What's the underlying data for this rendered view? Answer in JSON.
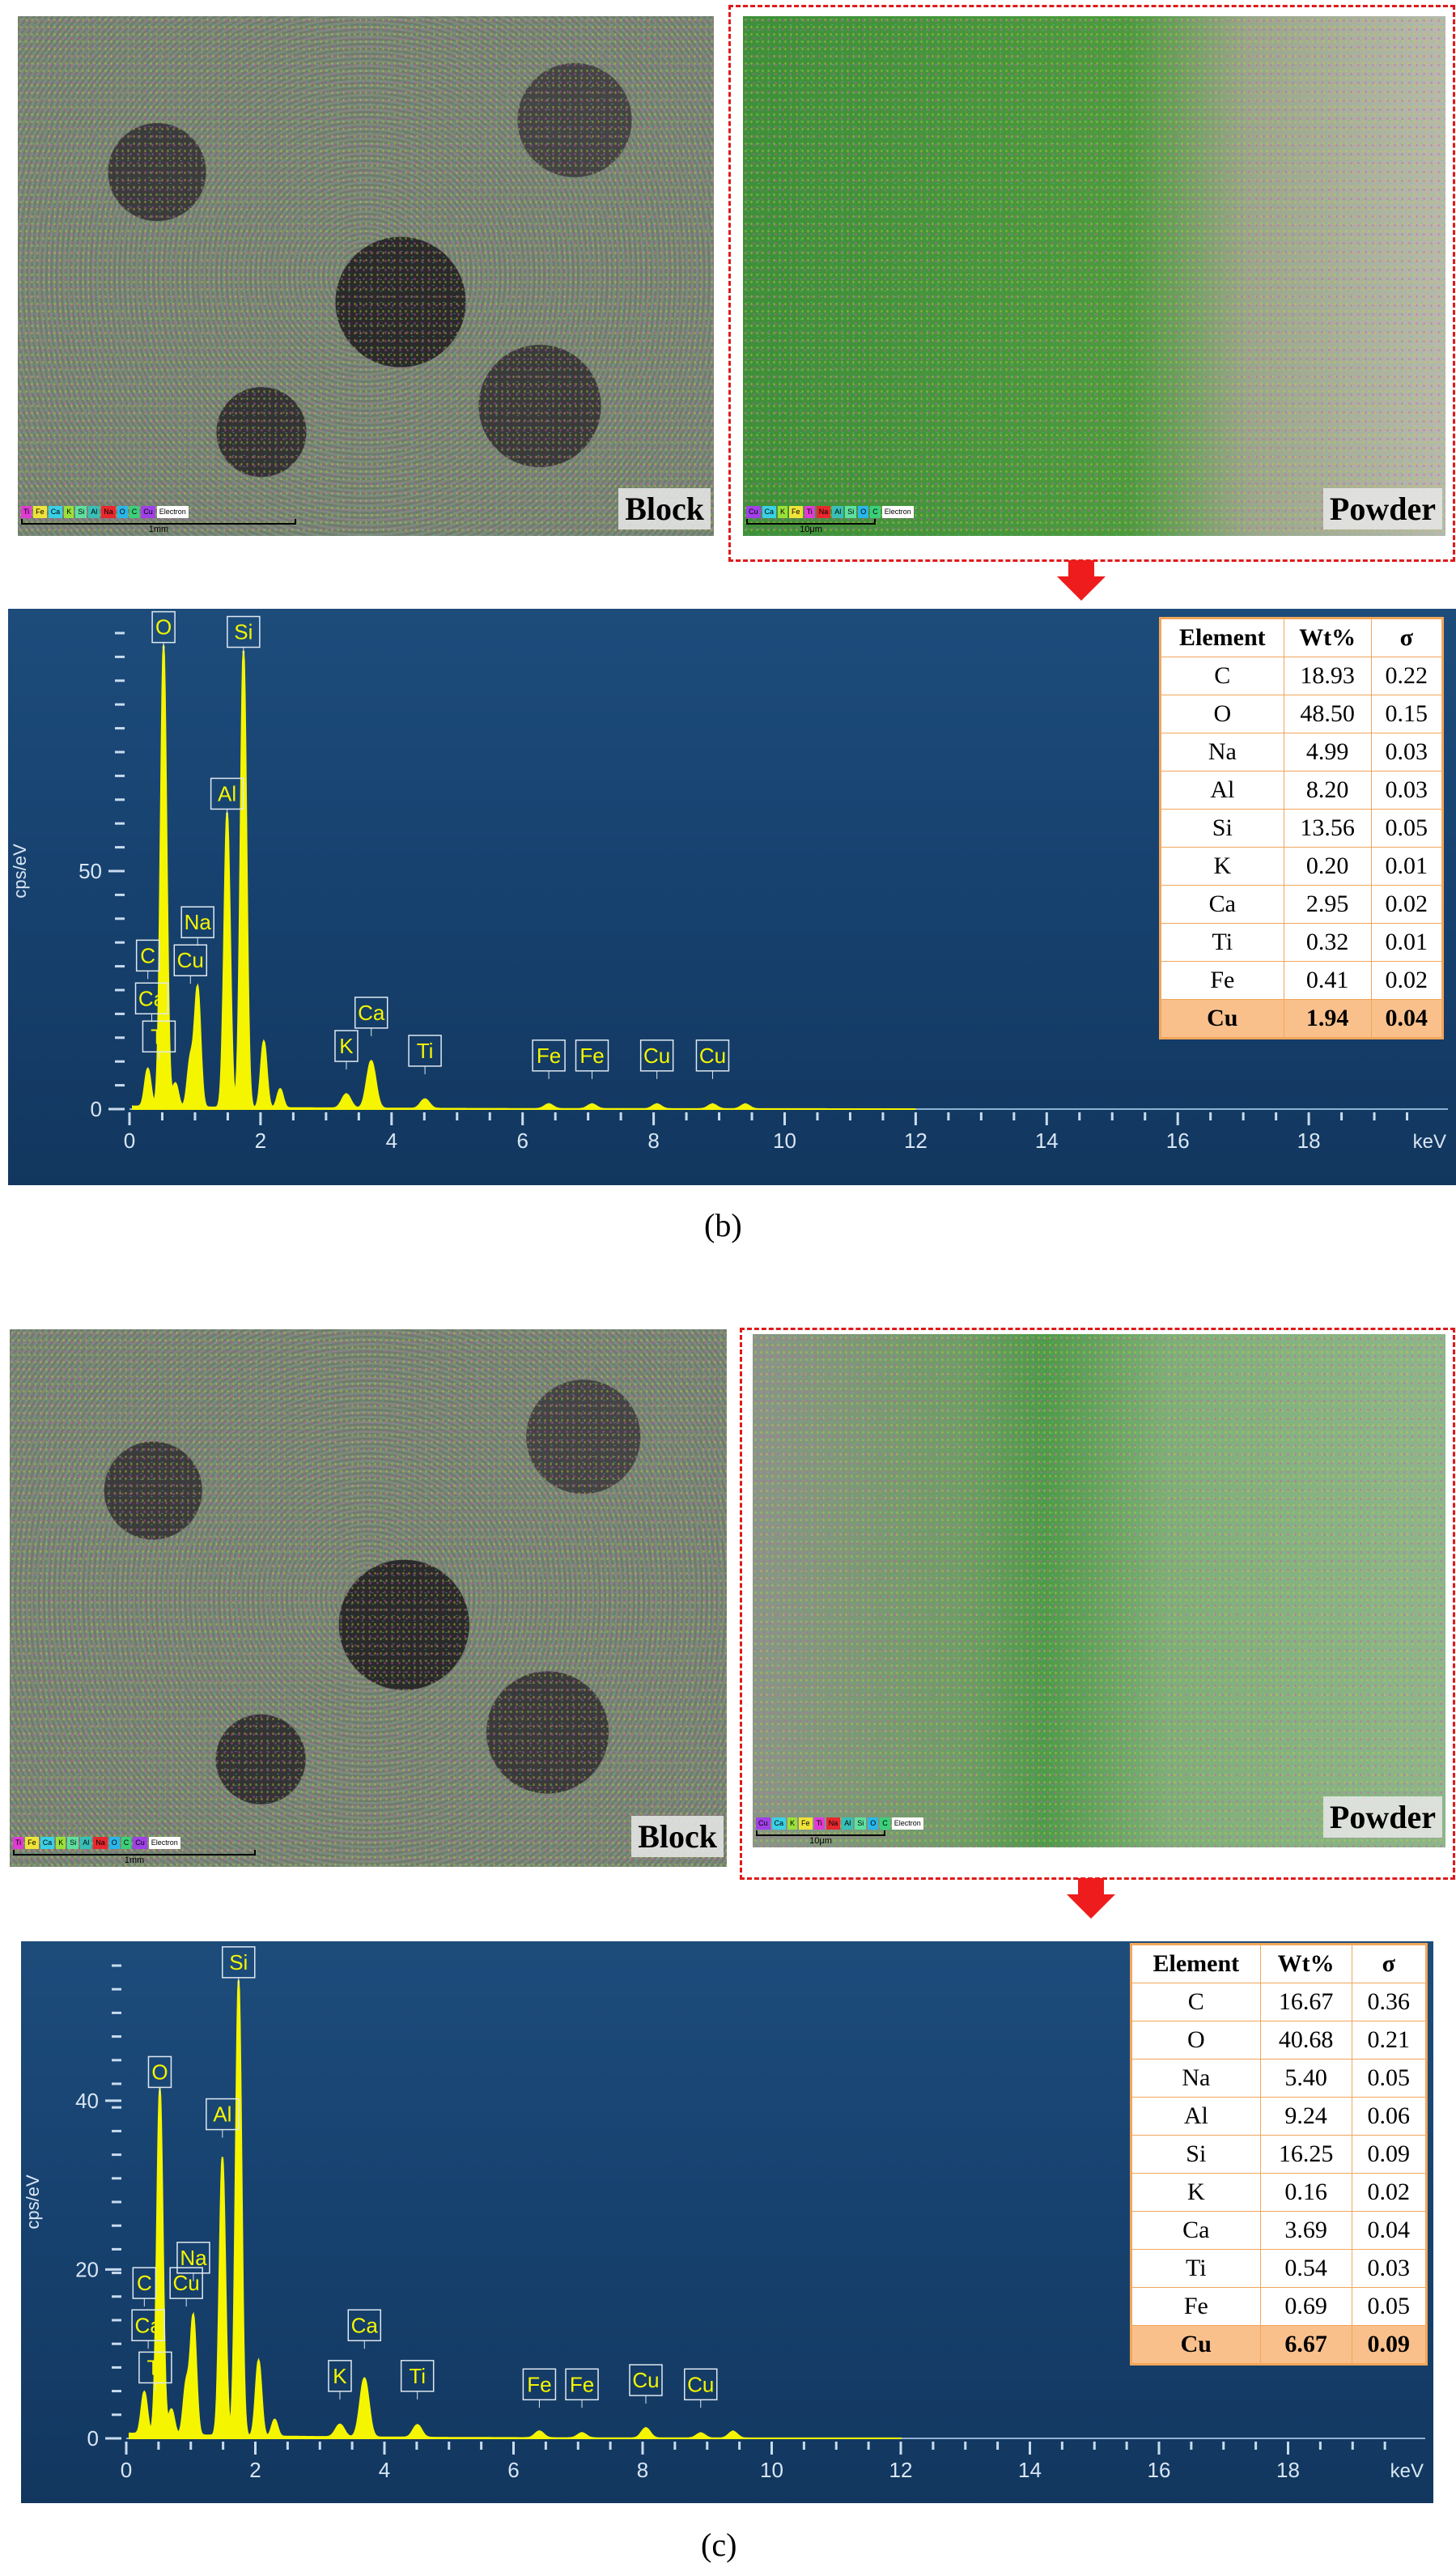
{
  "panels": [
    {
      "id": "b",
      "caption": "(b)",
      "block_label": "Block",
      "powder_label": "Powder",
      "block_legend": [
        "Ti",
        "Fe",
        "Ca",
        "K",
        "Si",
        "Al",
        "Na",
        "O",
        "C",
        "Cu",
        "Electron"
      ],
      "powder_legend": [
        "Cu",
        "Ca",
        "K",
        "Fe",
        "Ti",
        "Na",
        "Al",
        "Si",
        "O",
        "C",
        "Electron"
      ],
      "block_scale": "1mm",
      "powder_scale": "10μm",
      "table": {
        "headers": [
          "Element",
          "Wt%",
          "σ"
        ],
        "rows": [
          [
            "C",
            "18.93",
            "0.22"
          ],
          [
            "O",
            "48.50",
            "0.15"
          ],
          [
            "Na",
            "4.99",
            "0.03"
          ],
          [
            "Al",
            "8.20",
            "0.03"
          ],
          [
            "Si",
            "13.56",
            "0.05"
          ],
          [
            "K",
            "0.20",
            "0.01"
          ],
          [
            "Ca",
            "2.95",
            "0.02"
          ],
          [
            "Ti",
            "0.32",
            "0.01"
          ],
          [
            "Fe",
            "0.41",
            "0.02"
          ],
          [
            "Cu",
            "1.94",
            "0.04"
          ]
        ]
      }
    },
    {
      "id": "c",
      "caption": "(c)",
      "block_label": "Block",
      "powder_label": "Powder",
      "block_legend": [
        "Ti",
        "Fe",
        "Ca",
        "K",
        "Si",
        "Al",
        "Na",
        "O",
        "C",
        "Cu",
        "Electron"
      ],
      "powder_legend": [
        "Cu",
        "Ca",
        "K",
        "Fe",
        "Ti",
        "Na",
        "Al",
        "Si",
        "O",
        "C",
        "Electron"
      ],
      "block_scale": "1mm",
      "powder_scale": "10μm",
      "table": {
        "headers": [
          "Element",
          "Wt%",
          "σ"
        ],
        "rows": [
          [
            "C",
            "16.67",
            "0.36"
          ],
          [
            "O",
            "40.68",
            "0.21"
          ],
          [
            "Na",
            "5.40",
            "0.05"
          ],
          [
            "Al",
            "9.24",
            "0.06"
          ],
          [
            "Si",
            "16.25",
            "0.09"
          ],
          [
            "K",
            "0.16",
            "0.02"
          ],
          [
            "Ca",
            "3.69",
            "0.04"
          ],
          [
            "Ti",
            "0.54",
            "0.03"
          ],
          [
            "Fe",
            "0.69",
            "0.05"
          ],
          [
            "Cu",
            "6.67",
            "0.09"
          ]
        ]
      }
    }
  ],
  "legend_colors": {
    "Ti": "#e23ad7",
    "Fe": "#f0e33a",
    "Ca": "#3ad0e6",
    "K": "#9be03a",
    "Si": "#5fe0a0",
    "Al": "#38c0b8",
    "Na": "#e8282e",
    "O": "#2ab6ea",
    "C": "#3ad07a",
    "Cu": "#a040e8",
    "Electron": "#ffffff"
  },
  "chart_data": [
    {
      "type": "line",
      "title": "",
      "xlabel": "keV",
      "ylabel": "cps/eV",
      "xlim": [
        0,
        20
      ],
      "ylim": [
        0,
        100
      ],
      "x_ticks": [
        0,
        2,
        4,
        6,
        8,
        10,
        12,
        14,
        16,
        18
      ],
      "y_ticks": [
        0,
        50
      ],
      "line_color": "#f5f500",
      "peaks": [
        {
          "x": 0.28,
          "y": 8
        },
        {
          "x": 0.52,
          "y": 97
        },
        {
          "x": 0.7,
          "y": 5
        },
        {
          "x": 0.93,
          "y": 10
        },
        {
          "x": 1.04,
          "y": 25
        },
        {
          "x": 1.49,
          "y": 62
        },
        {
          "x": 1.74,
          "y": 96
        },
        {
          "x": 2.05,
          "y": 14
        },
        {
          "x": 2.3,
          "y": 4
        },
        {
          "x": 3.31,
          "y": 3
        },
        {
          "x": 3.69,
          "y": 10
        },
        {
          "x": 4.51,
          "y": 2
        },
        {
          "x": 6.4,
          "y": 1
        },
        {
          "x": 7.06,
          "y": 1
        },
        {
          "x": 8.05,
          "y": 1
        },
        {
          "x": 8.9,
          "y": 1
        },
        {
          "x": 9.4,
          "y": 1
        }
      ],
      "annotations": [
        {
          "label": "O",
          "x": 0.52,
          "y": 97
        },
        {
          "label": "Si",
          "x": 1.74,
          "y": 96
        },
        {
          "label": "Al",
          "x": 1.49,
          "y": 62
        },
        {
          "label": "Na",
          "x": 1.04,
          "y": 35
        },
        {
          "label": "Cu",
          "x": 0.93,
          "y": 27
        },
        {
          "label": "C",
          "x": 0.28,
          "y": 28
        },
        {
          "label": "Ca",
          "x": 0.34,
          "y": 19
        },
        {
          "label": "Ti",
          "x": 0.45,
          "y": 11
        },
        {
          "label": "K",
          "x": 3.31,
          "y": 9
        },
        {
          "label": "Ca",
          "x": 3.69,
          "y": 16
        },
        {
          "label": "Ti",
          "x": 4.51,
          "y": 8
        },
        {
          "label": "Fe",
          "x": 6.4,
          "y": 7
        },
        {
          "label": "Fe",
          "x": 7.06,
          "y": 7
        },
        {
          "label": "Cu",
          "x": 8.05,
          "y": 7
        },
        {
          "label": "Cu",
          "x": 8.9,
          "y": 7
        }
      ]
    },
    {
      "type": "line",
      "title": "",
      "xlabel": "keV",
      "ylabel": "cps/eV",
      "xlim": [
        0,
        20
      ],
      "ylim": [
        0,
        56
      ],
      "x_ticks": [
        0,
        2,
        4,
        6,
        8,
        10,
        12,
        14,
        16,
        18
      ],
      "y_ticks": [
        0,
        20,
        40
      ],
      "line_color": "#f5f500",
      "peaks": [
        {
          "x": 0.28,
          "y": 5
        },
        {
          "x": 0.52,
          "y": 41
        },
        {
          "x": 0.7,
          "y": 3
        },
        {
          "x": 0.93,
          "y": 6
        },
        {
          "x": 1.04,
          "y": 14
        },
        {
          "x": 1.49,
          "y": 33
        },
        {
          "x": 1.74,
          "y": 54
        },
        {
          "x": 2.05,
          "y": 9
        },
        {
          "x": 2.3,
          "y": 2
        },
        {
          "x": 3.31,
          "y": 1.5
        },
        {
          "x": 3.69,
          "y": 7
        },
        {
          "x": 4.51,
          "y": 1.5
        },
        {
          "x": 6.4,
          "y": 0.8
        },
        {
          "x": 7.06,
          "y": 0.6
        },
        {
          "x": 8.05,
          "y": 1.2
        },
        {
          "x": 8.9,
          "y": 0.6
        },
        {
          "x": 9.4,
          "y": 0.8
        }
      ],
      "annotations": [
        {
          "label": "Si",
          "x": 1.74,
          "y": 54
        },
        {
          "label": "O",
          "x": 0.52,
          "y": 41
        },
        {
          "label": "Al",
          "x": 1.49,
          "y": 36
        },
        {
          "label": "Na",
          "x": 1.04,
          "y": 19
        },
        {
          "label": "C",
          "x": 0.28,
          "y": 16
        },
        {
          "label": "Cu",
          "x": 0.93,
          "y": 16
        },
        {
          "label": "Ca",
          "x": 0.34,
          "y": 11
        },
        {
          "label": "Ti",
          "x": 0.45,
          "y": 6
        },
        {
          "label": "K",
          "x": 3.31,
          "y": 5
        },
        {
          "label": "Ca",
          "x": 3.69,
          "y": 11
        },
        {
          "label": "Ti",
          "x": 4.51,
          "y": 5
        },
        {
          "label": "Fe",
          "x": 6.4,
          "y": 4
        },
        {
          "label": "Fe",
          "x": 7.06,
          "y": 4
        },
        {
          "label": "Cu",
          "x": 8.05,
          "y": 4.5
        },
        {
          "label": "Cu",
          "x": 8.9,
          "y": 4
        }
      ]
    }
  ]
}
